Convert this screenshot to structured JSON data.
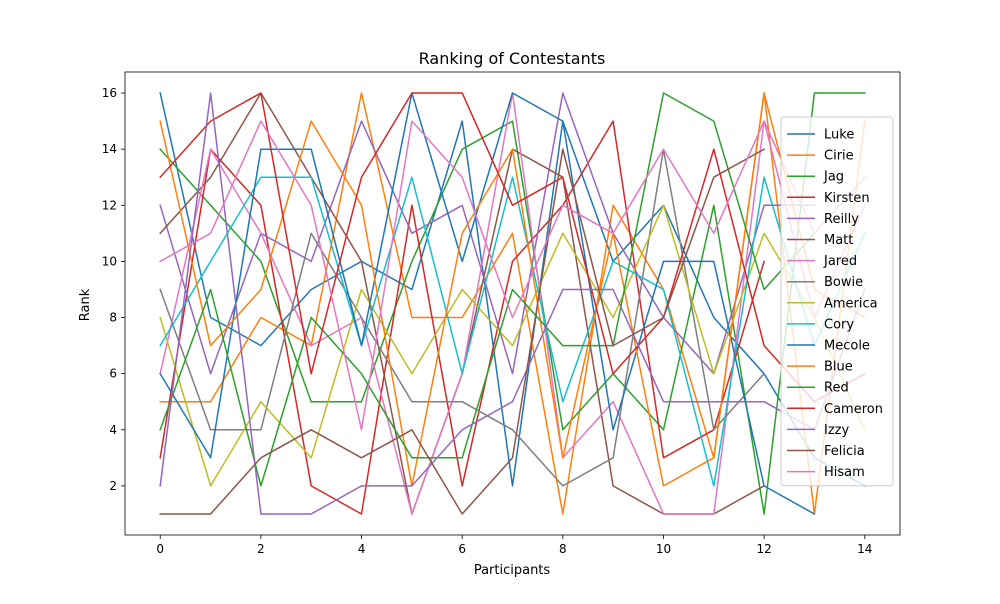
{
  "chart_data": {
    "type": "line",
    "title": "Ranking of Contestants",
    "xlabel": "Participants",
    "ylabel": "Rank",
    "xlim": [
      -0.7,
      14.7
    ],
    "ylim": [
      0.25,
      16.75
    ],
    "xticks": [
      0,
      2,
      4,
      6,
      8,
      10,
      12,
      14
    ],
    "yticks": [
      2,
      4,
      6,
      8,
      10,
      12,
      14,
      16
    ],
    "grid": false,
    "legend_position": "upper right",
    "x": [
      0,
      1,
      2,
      3,
      4,
      5,
      6,
      7,
      8,
      9,
      10,
      11,
      12,
      13,
      14
    ],
    "series": [
      {
        "name": "Luke",
        "color": "#1f77b4",
        "values": [
          16,
          8,
          7,
          9,
          10,
          9,
          15,
          2,
          15,
          10,
          12,
          8,
          6,
          3,
          2
        ]
      },
      {
        "name": "Cirie",
        "color": "#ff7f0e",
        "values": [
          5,
          5,
          8,
          7,
          16,
          8,
          8,
          11,
          1,
          12,
          9,
          3,
          16,
          1,
          15
        ]
      },
      {
        "name": "Jag",
        "color": "#2ca02c",
        "values": [
          14,
          12,
          10,
          5,
          5,
          10,
          14,
          15,
          4,
          6,
          4,
          12,
          1,
          16,
          16
        ]
      },
      {
        "name": "Kirsten",
        "color": "#d62728",
        "values": [
          3,
          14,
          12,
          2,
          1,
          12,
          2,
          10,
          12,
          15,
          3,
          4,
          10,
          null,
          null
        ]
      },
      {
        "name": "Reilly",
        "color": "#9467bd",
        "values": [
          12,
          6,
          11,
          10,
          15,
          11,
          12,
          6,
          16,
          11,
          8,
          6,
          12,
          12,
          null
        ]
      },
      {
        "name": "Matt",
        "color": "#8c564b",
        "values": [
          11,
          13,
          16,
          13,
          10,
          1,
          6,
          14,
          13,
          2,
          1,
          1,
          2,
          null,
          null
        ]
      },
      {
        "name": "Jared",
        "color": "#e377c2",
        "values": [
          6,
          14,
          11,
          7,
          8,
          1,
          6,
          16,
          3,
          5,
          1,
          1,
          15,
          11,
          13
        ]
      },
      {
        "name": "Bowie",
        "color": "#7f7f7f",
        "values": [
          9,
          4,
          4,
          11,
          8,
          5,
          5,
          4,
          2,
          3,
          14,
          4,
          6,
          null,
          null
        ]
      },
      {
        "name": "America",
        "color": "#bcbd22",
        "values": [
          8,
          2,
          5,
          3,
          9,
          6,
          9,
          7,
          11,
          8,
          12,
          6,
          11,
          8,
          4
        ]
      },
      {
        "name": "Cory",
        "color": "#17becf",
        "values": [
          7,
          10,
          13,
          13,
          7,
          13,
          6,
          13,
          5,
          10,
          9,
          2,
          13,
          7,
          11
        ]
      },
      {
        "name": "Mecole",
        "color": "#1f77b4",
        "values": [
          6,
          3,
          14,
          14,
          7,
          16,
          10,
          16,
          15,
          4,
          10,
          10,
          2,
          1,
          null
        ]
      },
      {
        "name": "Blue",
        "color": "#ff7f0e",
        "values": [
          15,
          7,
          9,
          15,
          12,
          2,
          11,
          14,
          3,
          11,
          2,
          3,
          16,
          9,
          8
        ]
      },
      {
        "name": "Red",
        "color": "#2ca02c",
        "values": [
          4,
          9,
          2,
          8,
          6,
          3,
          3,
          9,
          7,
          7,
          16,
          15,
          9,
          11,
          null
        ]
      },
      {
        "name": "Cameron",
        "color": "#d62728",
        "values": [
          13,
          15,
          16,
          6,
          13,
          16,
          16,
          12,
          13,
          6,
          8,
          14,
          7,
          5,
          6
        ]
      },
      {
        "name": "Izzy",
        "color": "#9467bd",
        "values": [
          2,
          16,
          1,
          1,
          2,
          2,
          4,
          5,
          9,
          9,
          5,
          5,
          5,
          4,
          9
        ]
      },
      {
        "name": "Felicia",
        "color": "#8c564b",
        "values": [
          1,
          1,
          3,
          4,
          3,
          4,
          1,
          3,
          14,
          7,
          8,
          13,
          14,
          null,
          null
        ]
      },
      {
        "name": "Hisam",
        "color": "#e377c2",
        "values": [
          10,
          11,
          15,
          12,
          4,
          15,
          13,
          8,
          12,
          11,
          14,
          11,
          15,
          8,
          12
        ]
      }
    ]
  }
}
